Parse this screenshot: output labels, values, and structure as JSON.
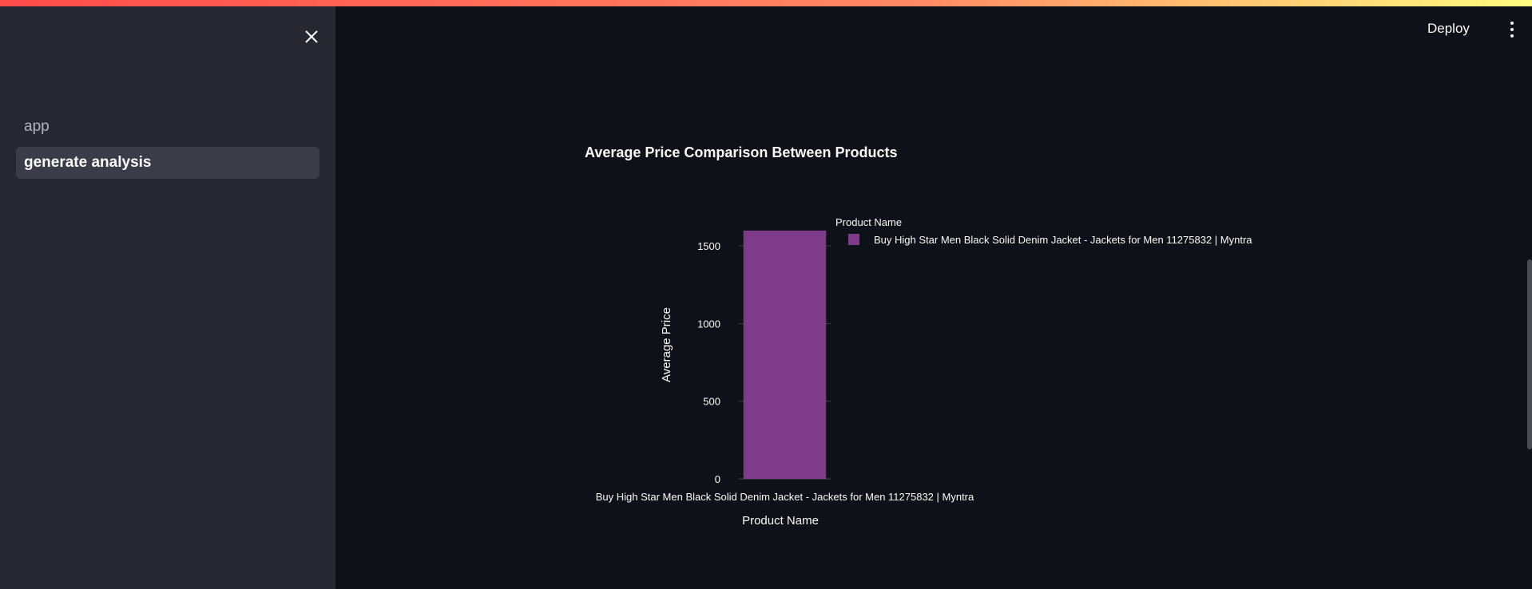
{
  "sidebar": {
    "items": [
      {
        "label": "app",
        "active": false
      },
      {
        "label": "generate analysis",
        "active": true
      }
    ],
    "close_icon": "close-icon"
  },
  "header": {
    "deploy_label": "Deploy",
    "menu_icon": "vertical-dots-icon"
  },
  "chart_data": {
    "type": "bar",
    "title": "Average Price Comparison Between Products",
    "categories": [
      "Buy High Star Men Black Solid Denim Jacket  - Jackets for Men 11275832 | Myntra"
    ],
    "series": [
      {
        "name": "Buy High Star Men Black Solid Denim Jacket  - Jackets for Men 11275832 | Myntra",
        "values": [
          1599
        ],
        "color": "#7e3b8a"
      }
    ],
    "xlabel": "Product Name",
    "ylabel": "Average Price",
    "ylim": [
      0,
      1650
    ],
    "yticks": [
      0,
      500,
      1000,
      1500
    ],
    "legend_title": "Product Name",
    "legend_position": "top-right",
    "grid": true
  },
  "colors": {
    "background": "#0e1117",
    "sidebar": "#262730",
    "bar": "#7e3b8a",
    "accent_gradient_start": "#ff4b4b",
    "accent_gradient_end": "#fffd80"
  }
}
